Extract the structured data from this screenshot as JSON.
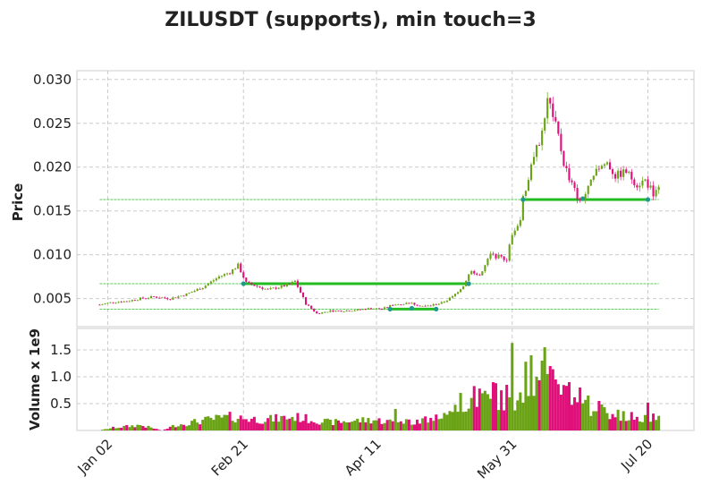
{
  "chart_data": {
    "type": "candlestick",
    "title": "ZILUSDT (supports), min touch=3",
    "price_panel": {
      "ylabel": "Price",
      "ylim": [
        0.0018,
        0.031
      ],
      "yticks": [
        0.005,
        0.01,
        0.015,
        0.02,
        0.025,
        0.03
      ],
      "ytick_labels": [
        "0.005",
        "0.010",
        "0.015",
        "0.020",
        "0.025",
        "0.030"
      ],
      "grid": true
    },
    "volume_panel": {
      "ylabel": "Volume x 1e9",
      "ylim": [
        0,
        1.9
      ],
      "yticks": [
        0.5,
        1.0,
        1.5
      ],
      "ytick_labels": [
        "0.5",
        "1.0",
        "1.5"
      ],
      "grid": true
    },
    "x_axis": {
      "start_index": 0,
      "end_index": 206,
      "tick_indices": [
        3,
        53,
        102,
        152,
        202
      ],
      "tick_labels": [
        "Jan 02",
        "Feb 21",
        "Apr 11",
        "May 31",
        "Jul 20"
      ]
    },
    "colors": {
      "up": "#6aa416",
      "down": "#e0107a",
      "support": "#22bb22",
      "touch_marker": "#1f9a8a",
      "grid": "#cccccc",
      "frame": "#dddddd"
    },
    "support_levels": [
      {
        "price": 0.0163,
        "touch_start_index": 156,
        "touch_end_index": 202
      },
      {
        "price": 0.0067,
        "touch_start_index": 53,
        "touch_end_index": 136
      },
      {
        "price": 0.0038,
        "touch_start_index": 107,
        "touch_end_index": 124
      }
    ],
    "touches": [
      {
        "index": 53,
        "price": 0.0067
      },
      {
        "index": 136,
        "price": 0.0067
      },
      {
        "index": 107,
        "price": 0.0038
      },
      {
        "index": 115,
        "price": 0.0039
      },
      {
        "index": 124,
        "price": 0.0038
      },
      {
        "index": 156,
        "price": 0.0163
      },
      {
        "index": 178,
        "price": 0.0164
      },
      {
        "index": 202,
        "price": 0.0163
      }
    ],
    "close_anchors": [
      [
        0,
        0.0043
      ],
      [
        5,
        0.0046
      ],
      [
        10,
        0.0047
      ],
      [
        15,
        0.005
      ],
      [
        20,
        0.0052
      ],
      [
        26,
        0.005
      ],
      [
        32,
        0.0055
      ],
      [
        38,
        0.0063
      ],
      [
        44,
        0.0075
      ],
      [
        48,
        0.008
      ],
      [
        51,
        0.0088
      ],
      [
        54,
        0.0068
      ],
      [
        58,
        0.0064
      ],
      [
        62,
        0.006
      ],
      [
        66,
        0.0063
      ],
      [
        70,
        0.0066
      ],
      [
        72,
        0.007
      ],
      [
        76,
        0.0044
      ],
      [
        80,
        0.0033
      ],
      [
        85,
        0.0036
      ],
      [
        90,
        0.0036
      ],
      [
        95,
        0.0037
      ],
      [
        100,
        0.0039
      ],
      [
        104,
        0.0038
      ],
      [
        108,
        0.0043
      ],
      [
        114,
        0.0045
      ],
      [
        120,
        0.0041
      ],
      [
        126,
        0.0045
      ],
      [
        130,
        0.0052
      ],
      [
        134,
        0.0065
      ],
      [
        137,
        0.0083
      ],
      [
        140,
        0.0075
      ],
      [
        144,
        0.01
      ],
      [
        150,
        0.0095
      ],
      [
        152,
        0.0125
      ],
      [
        155,
        0.014
      ],
      [
        156,
        0.0165
      ],
      [
        160,
        0.021
      ],
      [
        163,
        0.024
      ],
      [
        165,
        0.028
      ],
      [
        168,
        0.025
      ],
      [
        171,
        0.0205
      ],
      [
        174,
        0.018
      ],
      [
        177,
        0.016
      ],
      [
        180,
        0.0175
      ],
      [
        184,
        0.02
      ],
      [
        187,
        0.0205
      ],
      [
        190,
        0.019
      ],
      [
        194,
        0.0195
      ],
      [
        198,
        0.018
      ],
      [
        201,
        0.0185
      ],
      [
        204,
        0.017
      ],
      [
        206,
        0.018
      ]
    ],
    "volume_anchors": [
      [
        0,
        0.0
      ],
      [
        5,
        0.05
      ],
      [
        15,
        0.1
      ],
      [
        23,
        0.0
      ],
      [
        28,
        0.1
      ],
      [
        40,
        0.2
      ],
      [
        48,
        0.25
      ],
      [
        60,
        0.2
      ],
      [
        72,
        0.25
      ],
      [
        85,
        0.15
      ],
      [
        100,
        0.2
      ],
      [
        110,
        0.15
      ],
      [
        120,
        0.2
      ],
      [
        130,
        0.3
      ],
      [
        137,
        0.6
      ],
      [
        145,
        0.65
      ],
      [
        150,
        0.5
      ],
      [
        155,
        0.7
      ],
      [
        160,
        0.9
      ],
      [
        165,
        0.85
      ],
      [
        170,
        0.8
      ],
      [
        175,
        0.6
      ],
      [
        180,
        0.45
      ],
      [
        185,
        0.4
      ],
      [
        190,
        0.3
      ],
      [
        195,
        0.25
      ],
      [
        200,
        0.25
      ],
      [
        206,
        0.25
      ]
    ],
    "volume_spikes": [
      [
        109,
        0.4
      ],
      [
        133,
        0.7
      ],
      [
        140,
        0.78
      ],
      [
        146,
        0.88
      ],
      [
        150,
        0.85
      ],
      [
        152,
        1.63
      ],
      [
        157,
        1.28
      ],
      [
        159,
        1.4
      ],
      [
        161,
        1.0
      ],
      [
        163,
        1.3
      ],
      [
        164,
        1.55
      ],
      [
        166,
        1.2
      ],
      [
        168,
        0.95
      ],
      [
        173,
        0.9
      ],
      [
        177,
        0.8
      ],
      [
        180,
        0.65
      ],
      [
        184,
        0.55
      ],
      [
        202,
        0.52
      ]
    ]
  }
}
